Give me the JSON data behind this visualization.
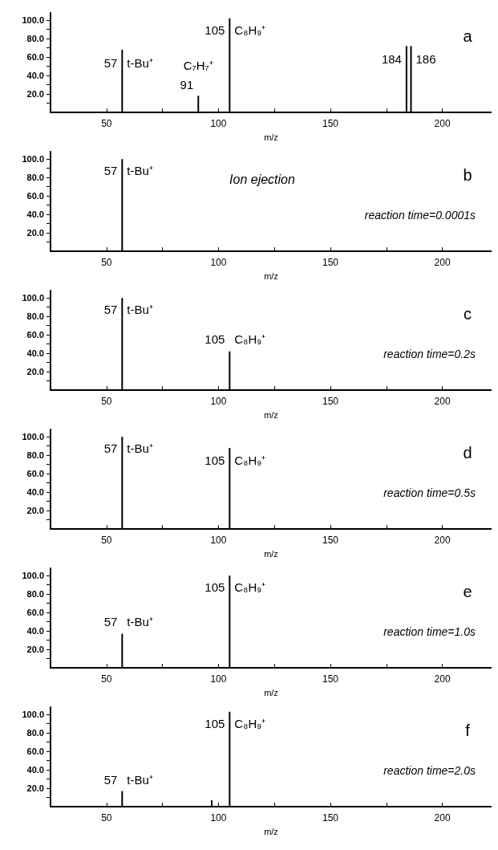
{
  "chart_data": [
    {
      "type": "bar",
      "x": [
        57,
        91,
        105,
        184,
        186
      ],
      "values": [
        68,
        18,
        102,
        72,
        72
      ],
      "color": "#000000",
      "xlim": [
        25,
        222
      ],
      "xticks": [
        50,
        {
          "value": 75,
          "label": null
        },
        100,
        {
          "value": 125,
          "label": null
        },
        150,
        {
          "value": 175,
          "label": null
        },
        200
      ],
      "ylim": [
        0,
        108
      ],
      "yticks": [
        {
          "value": 10,
          "label": null
        },
        {
          "value": 20,
          "label": "20.0"
        },
        {
          "value": 30,
          "label": null
        },
        {
          "value": 40,
          "label": "40.0"
        },
        {
          "value": 50,
          "label": null
        },
        {
          "value": 60,
          "label": "60.0"
        },
        {
          "value": 70,
          "label": null
        },
        {
          "value": 80,
          "label": "80.0"
        },
        {
          "value": 90,
          "label": null
        },
        {
          "value": 100,
          "label": "100.0"
        }
      ],
      "xlabel": "m/z",
      "grid": false,
      "annotations": [
        "a",
        {
          "text": "57",
          "x": 57,
          "y": 68
        },
        {
          "text": "t-Bu⁺",
          "x": 57,
          "y": 68
        },
        {
          "text": "91",
          "x": 91,
          "y": 18
        },
        {
          "text": "C₇H₇⁺",
          "x": 91,
          "y": 18
        },
        {
          "text": "105",
          "x": 105,
          "y": 102
        },
        {
          "text": "C₈H₉⁺",
          "x": 105,
          "y": 102
        },
        {
          "text": "184",
          "x": 184,
          "y": 72
        },
        {
          "text": "186",
          "x": 186,
          "y": 72
        }
      ]
    },
    {
      "type": "bar",
      "x": [
        57
      ],
      "values": [
        100
      ],
      "color": "#000000",
      "xlim": [
        25,
        222
      ],
      "xticks": [
        50,
        {
          "value": 75,
          "label": null
        },
        100,
        {
          "value": 125,
          "label": null
        },
        150,
        {
          "value": 175,
          "label": null
        },
        200
      ],
      "ylim": [
        0,
        108
      ],
      "yticks": [
        {
          "value": 10,
          "label": null
        },
        {
          "value": 20,
          "label": "20.0"
        },
        {
          "value": 30,
          "label": null
        },
        {
          "value": 40,
          "label": "40.0"
        },
        {
          "value": 50,
          "label": null
        },
        {
          "value": 60,
          "label": "60.0"
        },
        {
          "value": 70,
          "label": null
        },
        {
          "value": 80,
          "label": "80.0"
        },
        {
          "value": 90,
          "label": null
        },
        {
          "value": 100,
          "label": "100.0"
        }
      ],
      "xlabel": "m/z",
      "grid": false,
      "annotations": [
        "b",
        "Ion ejection",
        "reaction time=0.0001s",
        {
          "text": "57",
          "x": 57,
          "y": 100
        },
        {
          "text": "t-Bu⁺",
          "x": 57,
          "y": 100
        }
      ]
    },
    {
      "type": "bar",
      "x": [
        57,
        105
      ],
      "values": [
        100,
        42
      ],
      "color": "#000000",
      "xlim": [
        25,
        222
      ],
      "xticks": [
        50,
        {
          "value": 75,
          "label": null
        },
        100,
        {
          "value": 125,
          "label": null
        },
        150,
        {
          "value": 175,
          "label": null
        },
        200
      ],
      "ylim": [
        0,
        108
      ],
      "yticks": [
        {
          "value": 10,
          "label": null
        },
        {
          "value": 20,
          "label": "20.0"
        },
        {
          "value": 30,
          "label": null
        },
        {
          "value": 40,
          "label": "40.0"
        },
        {
          "value": 50,
          "label": null
        },
        {
          "value": 60,
          "label": "60.0"
        },
        {
          "value": 70,
          "label": null
        },
        {
          "value": 80,
          "label": "80.0"
        },
        {
          "value": 90,
          "label": null
        },
        {
          "value": 100,
          "label": "100.0"
        }
      ],
      "xlabel": "m/z",
      "grid": false,
      "annotations": [
        "c",
        "reaction time=0.2s",
        {
          "text": "57",
          "x": 57,
          "y": 100
        },
        {
          "text": "t-Bu⁺",
          "x": 57,
          "y": 100
        },
        {
          "text": "105",
          "x": 105,
          "y": 42
        },
        {
          "text": "C₈H₉⁺",
          "x": 105,
          "y": 42
        }
      ]
    },
    {
      "type": "bar",
      "x": [
        57,
        105
      ],
      "values": [
        100,
        88
      ],
      "color": "#000000",
      "xlim": [
        25,
        222
      ],
      "xticks": [
        50,
        {
          "value": 75,
          "label": null
        },
        100,
        {
          "value": 125,
          "label": null
        },
        150,
        {
          "value": 175,
          "label": null
        },
        200
      ],
      "ylim": [
        0,
        108
      ],
      "yticks": [
        {
          "value": 10,
          "label": null
        },
        {
          "value": 20,
          "label": "20.0"
        },
        {
          "value": 30,
          "label": null
        },
        {
          "value": 40,
          "label": "40.0"
        },
        {
          "value": 50,
          "label": null
        },
        {
          "value": 60,
          "label": "60.0"
        },
        {
          "value": 70,
          "label": null
        },
        {
          "value": 80,
          "label": "80.0"
        },
        {
          "value": 90,
          "label": null
        },
        {
          "value": 100,
          "label": "100.0"
        }
      ],
      "xlabel": "m/z",
      "grid": false,
      "annotations": [
        "d",
        "reaction time=0.5s",
        {
          "text": "57",
          "x": 57,
          "y": 100
        },
        {
          "text": "t-Bu⁺",
          "x": 57,
          "y": 100
        },
        {
          "text": "105",
          "x": 105,
          "y": 88
        },
        {
          "text": "C₈H₉⁺",
          "x": 105,
          "y": 88
        }
      ]
    },
    {
      "type": "bar",
      "x": [
        57,
        105
      ],
      "values": [
        37,
        100
      ],
      "color": "#000000",
      "xlim": [
        25,
        222
      ],
      "xticks": [
        50,
        {
          "value": 75,
          "label": null
        },
        100,
        {
          "value": 125,
          "label": null
        },
        150,
        {
          "value": 175,
          "label": null
        },
        200
      ],
      "ylim": [
        0,
        108
      ],
      "yticks": [
        {
          "value": 10,
          "label": null
        },
        {
          "value": 20,
          "label": "20.0"
        },
        {
          "value": 30,
          "label": null
        },
        {
          "value": 40,
          "label": "40.0"
        },
        {
          "value": 50,
          "label": null
        },
        {
          "value": 60,
          "label": "60.0"
        },
        {
          "value": 70,
          "label": null
        },
        {
          "value": 80,
          "label": "80.0"
        },
        {
          "value": 90,
          "label": null
        },
        {
          "value": 100,
          "label": "100.0"
        }
      ],
      "xlabel": "m/z",
      "grid": false,
      "annotations": [
        "e",
        "reaction time=1.0s",
        {
          "text": "57",
          "x": 57,
          "y": 37
        },
        {
          "text": "t-Bu⁺",
          "x": 57,
          "y": 37
        },
        {
          "text": "105",
          "x": 105,
          "y": 100
        },
        {
          "text": "C₈H₉⁺",
          "x": 105,
          "y": 100
        }
      ]
    },
    {
      "type": "bar",
      "x": [
        57,
        97,
        105
      ],
      "values": [
        17,
        7,
        103
      ],
      "color": "#000000",
      "xlim": [
        25,
        222
      ],
      "xticks": [
        50,
        {
          "value": 75,
          "label": null
        },
        100,
        {
          "value": 125,
          "label": null
        },
        150,
        {
          "value": 175,
          "label": null
        },
        200
      ],
      "ylim": [
        0,
        108
      ],
      "yticks": [
        {
          "value": 10,
          "label": null
        },
        {
          "value": 20,
          "label": "20.0"
        },
        {
          "value": 30,
          "label": null
        },
        {
          "value": 40,
          "label": "40.0"
        },
        {
          "value": 50,
          "label": null
        },
        {
          "value": 60,
          "label": "60.0"
        },
        {
          "value": 70,
          "label": null
        },
        {
          "value": 80,
          "label": "80.0"
        },
        {
          "value": 90,
          "label": null
        },
        {
          "value": 100,
          "label": "100.0"
        }
      ],
      "xlabel": "m/z",
      "grid": false,
      "annotations": [
        "f",
        "reaction time=2.0s",
        {
          "text": "57",
          "x": 57,
          "y": 17
        },
        {
          "text": "t-Bu⁺",
          "x": 57,
          "y": 17
        },
        {
          "text": "105",
          "x": 105,
          "y": 103
        },
        {
          "text": "C₈H₉⁺",
          "x": 105,
          "y": 103
        }
      ]
    }
  ]
}
